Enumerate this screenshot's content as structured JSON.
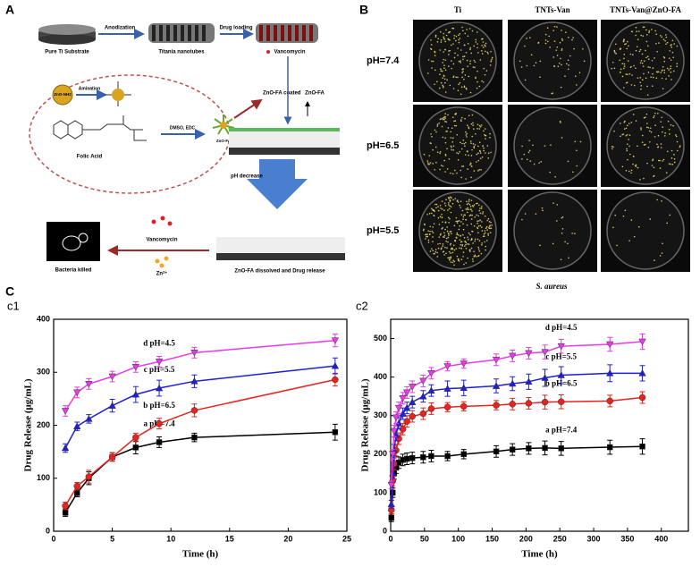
{
  "panel_a": {
    "label": "A",
    "substrate": "Pure Ti Substrate",
    "anodization": "Anodization",
    "nanotubes": "Titania nanotubes",
    "drug_loading": "Drug loading",
    "vancomycin": "Vancomycin",
    "zno_nh2": "ZnO-NH2",
    "amination": "Amination",
    "folic_acid": "Folic Acid",
    "dmso_edc": "DMSO, EDC",
    "zno_fa": "ZnO-FA",
    "coated": "ZnO-FA coated",
    "zno_fa_arrow": "ZnO-FA",
    "ph_decrease": "pH decrease",
    "release_vancomycin": "Vancomycin",
    "zn": "Zn²⁺",
    "bacteria_killed": "Bacteria killed",
    "dissolved": "ZnO-FA dissolved and Drug release"
  },
  "panel_b": {
    "label": "B",
    "columns": [
      "Ti",
      "TNTs-Van",
      "TNTs-Van@ZnO-FA"
    ],
    "rows": [
      "pH=7.4",
      "pH=6.5",
      "pH=5.5"
    ],
    "caption": "S. aureus"
  },
  "panel_c": {
    "label": "C"
  },
  "chart_data": [
    {
      "type": "line",
      "title": "c1",
      "xlabel": "Time (h)",
      "ylabel": "Drug Release (μg/mL)",
      "x": [
        1,
        2,
        3,
        5,
        7,
        9,
        12,
        24
      ],
      "xlim": [
        0,
        25
      ],
      "xticks": [
        0,
        5,
        10,
        15,
        20,
        25
      ],
      "ylim": [
        0,
        400
      ],
      "yticks": [
        0,
        100,
        200,
        300,
        400
      ],
      "series": [
        {
          "name": "a pH=7.4",
          "color": "#000000",
          "marker": "square",
          "values": [
            35,
            72,
            100,
            140,
            158,
            168,
            177,
            187
          ],
          "errors": [
            7,
            7,
            12,
            8,
            12,
            10,
            8,
            15
          ]
        },
        {
          "name": "b pH=6.5",
          "color": "#e8231e",
          "marker": "circle",
          "values": [
            48,
            85,
            103,
            140,
            177,
            203,
            228,
            286
          ],
          "errors": [
            7,
            7,
            12,
            8,
            8,
            10,
            12,
            12
          ]
        },
        {
          "name": "c pH=5.5",
          "color": "#1f1fd8",
          "marker": "triangle-up",
          "values": [
            157,
            198,
            212,
            237,
            258,
            270,
            283,
            312
          ],
          "errors": [
            8,
            8,
            8,
            12,
            15,
            15,
            12,
            15
          ]
        },
        {
          "name": "d pH=4.5",
          "color": "#e83ae8",
          "marker": "triangle-down",
          "values": [
            227,
            262,
            278,
            292,
            310,
            320,
            337,
            360
          ],
          "errors": [
            10,
            10,
            10,
            10,
            10,
            10,
            10,
            12
          ]
        }
      ]
    },
    {
      "type": "line",
      "title": "c2",
      "xlabel": "Time (h)",
      "ylabel": "Drug Release (μg/mL)",
      "x": [
        1,
        3,
        5,
        8,
        12,
        18,
        24,
        32,
        48,
        60,
        84,
        108,
        156,
        180,
        204,
        228,
        252,
        324,
        372
      ],
      "xlim": [
        0,
        440
      ],
      "xticks": [
        0,
        50,
        100,
        150,
        200,
        250,
        300,
        350,
        400
      ],
      "ylim": [
        0,
        550
      ],
      "yticks": [
        0,
        100,
        200,
        300,
        400,
        500
      ],
      "series": [
        {
          "name": "a pH=7.4",
          "color": "#000000",
          "marker": "square",
          "values": [
            35,
            100,
            150,
            165,
            178,
            185,
            188,
            190,
            192,
            195,
            195,
            200,
            207,
            212,
            215,
            216,
            215,
            218,
            220
          ],
          "errors": [
            10,
            12,
            15,
            15,
            15,
            15,
            15,
            15,
            15,
            15,
            12,
            12,
            15,
            15,
            15,
            18,
            18,
            18,
            20
          ]
        },
        {
          "name": "b pH=6.5",
          "color": "#e8231e",
          "marker": "circle",
          "values": [
            55,
            130,
            175,
            210,
            240,
            265,
            285,
            298,
            305,
            318,
            322,
            324,
            327,
            330,
            332,
            335,
            336,
            338,
            347
          ],
          "errors": [
            10,
            12,
            15,
            15,
            15,
            15,
            15,
            15,
            15,
            15,
            12,
            12,
            12,
            15,
            15,
            18,
            18,
            15,
            15
          ]
        },
        {
          "name": "c pH=5.5",
          "color": "#1f1fd8",
          "marker": "triangle-up",
          "values": [
            70,
            150,
            210,
            250,
            280,
            305,
            320,
            335,
            350,
            365,
            370,
            372,
            377,
            383,
            388,
            398,
            405,
            410,
            410
          ],
          "errors": [
            10,
            12,
            15,
            15,
            15,
            15,
            15,
            15,
            15,
            15,
            20,
            20,
            18,
            18,
            20,
            22,
            22,
            22,
            20
          ]
        },
        {
          "name": "d pH=4.5",
          "color": "#e83ae8",
          "marker": "triangle-down",
          "values": [
            120,
            200,
            260,
            295,
            320,
            345,
            360,
            375,
            390,
            410,
            428,
            435,
            445,
            455,
            462,
            465,
            480,
            485,
            492
          ],
          "errors": [
            10,
            12,
            15,
            15,
            15,
            15,
            15,
            15,
            15,
            15,
            12,
            12,
            15,
            15,
            15,
            18,
            18,
            18,
            20
          ]
        }
      ]
    }
  ]
}
